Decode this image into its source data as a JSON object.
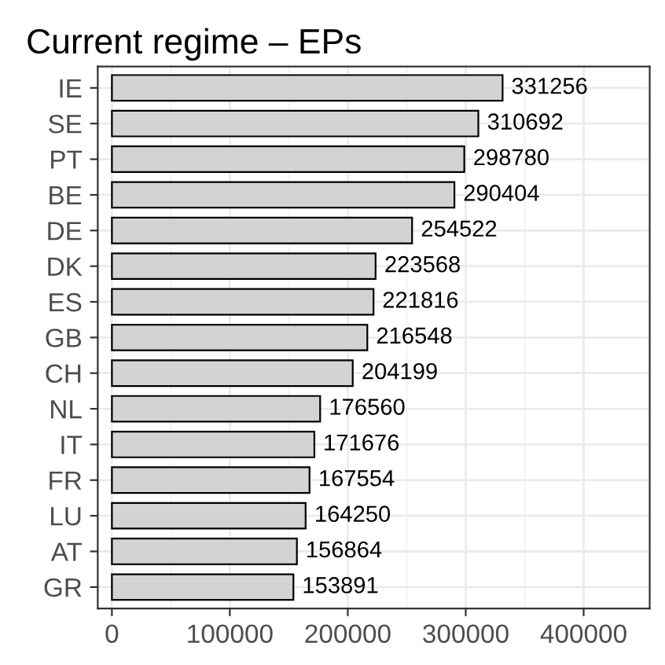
{
  "chart_data": {
    "type": "bar",
    "orientation": "horizontal",
    "title": "Current regime – EPs",
    "categories": [
      "IE",
      "SE",
      "PT",
      "BE",
      "DE",
      "DK",
      "ES",
      "GB",
      "CH",
      "NL",
      "IT",
      "FR",
      "LU",
      "AT",
      "GR"
    ],
    "values": [
      331256,
      310692,
      298780,
      290404,
      254522,
      223568,
      221816,
      216548,
      204199,
      176560,
      171676,
      167554,
      164250,
      156864,
      153891
    ],
    "color": "#d3d3d3",
    "data_labels": true,
    "xlim": [
      -12000,
      456000
    ],
    "xticks": [
      0,
      100000,
      200000,
      300000,
      400000
    ],
    "grid": true,
    "legend": false
  }
}
